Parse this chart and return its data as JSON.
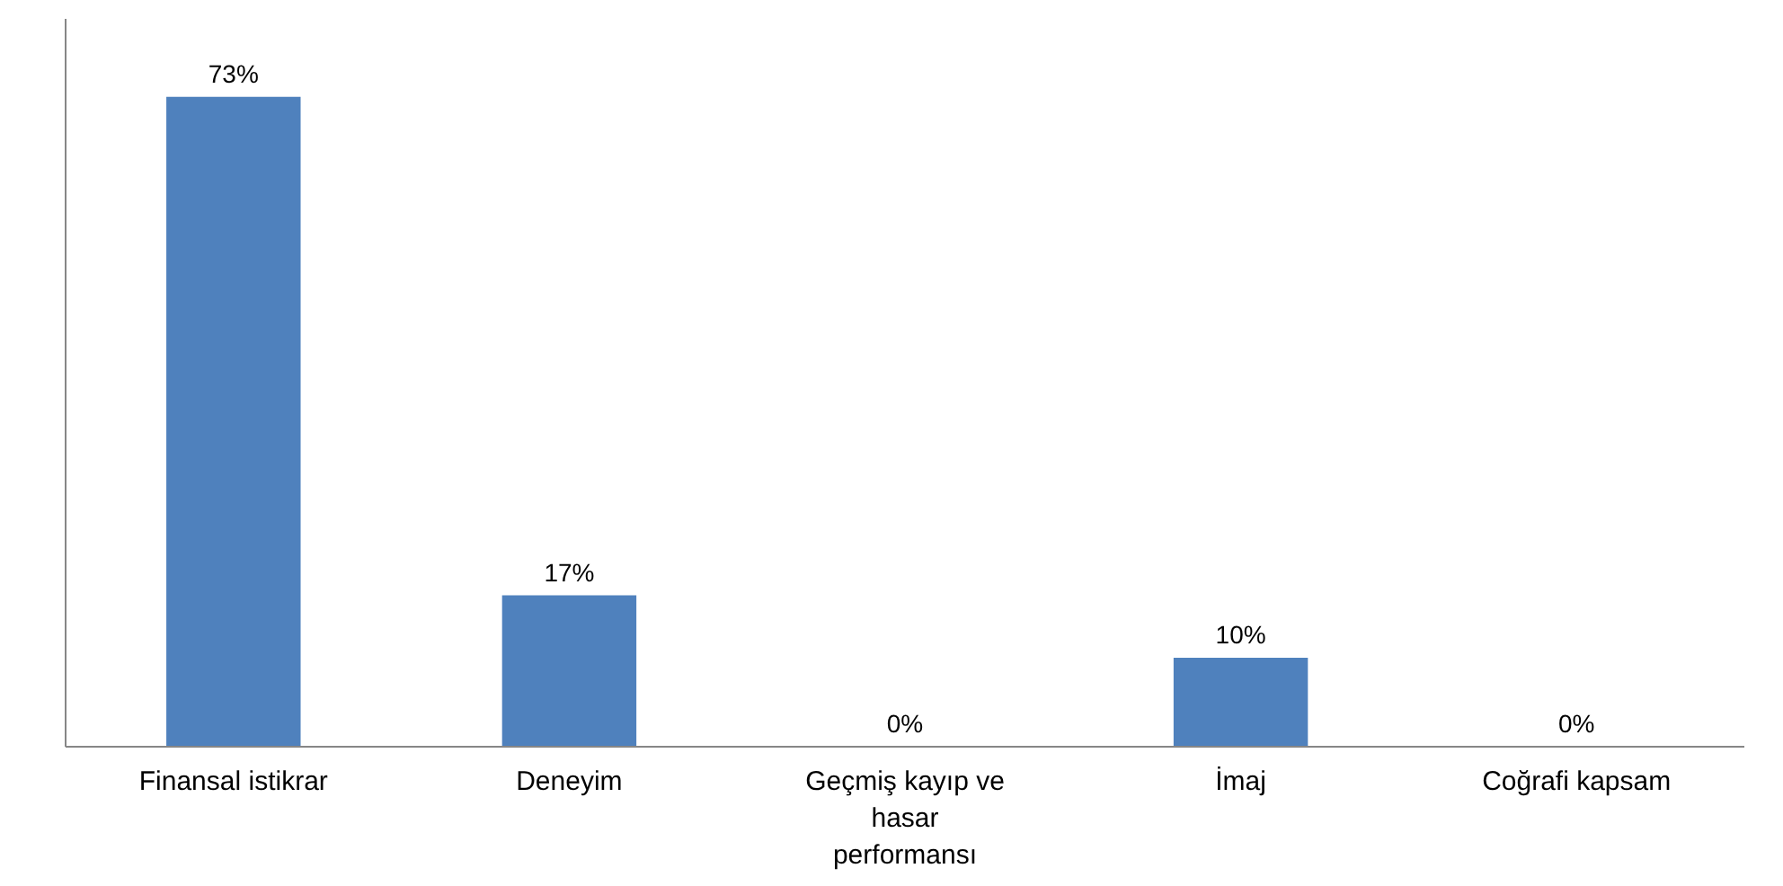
{
  "chart_data": {
    "type": "bar",
    "categories": [
      "Finansal istikrar",
      "Deneyim",
      "Geçmiş kayıp ve hasar performansı",
      "İmaj",
      "Coğrafi kapsam"
    ],
    "values": [
      73,
      17,
      0,
      10,
      0
    ],
    "color": "#4f81bd",
    "value_labels": [
      "73%",
      "17%",
      "0%",
      "10%",
      "0%"
    ],
    "grid": false
  }
}
